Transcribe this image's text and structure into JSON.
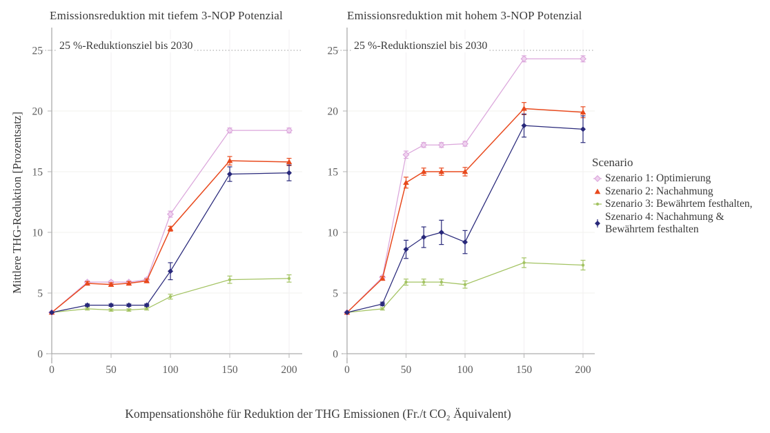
{
  "ylabel": "Mittlere THG-Reduktion [Prozentsatz]",
  "xlabel": "Kompensationshöhe für Reduktion der THG Emissionen (Fr./t CO₂ Äquivalent)",
  "legend": {
    "title": "Scenario",
    "items": [
      {
        "label": "Szenario 1: Optimierung",
        "color": "#DBA6DB",
        "marker": "diamond-open"
      },
      {
        "label": "Szenario 2: Nachahmung",
        "color": "#E8491D",
        "marker": "triangle"
      },
      {
        "label": "Szenario 3: Bewährtem festhalten,",
        "color": "#A3C362",
        "marker": "tick"
      },
      {
        "label": "Szenario 4: Nachahmung & Bewährtem festhalten",
        "color": "#28287A",
        "marker": "diamond"
      }
    ]
  },
  "chart_data": [
    {
      "type": "line",
      "title": "Emissionsreduktion mit tiefem 3-NOP Potenzial",
      "annotation": "25 %-Reduktionsziel bis 2030",
      "target_line": 25,
      "xlabel": "Kompensationshöhe für Reduktion der THG Emissionen (Fr./t CO₂ Äquivalent)",
      "ylabel": "Mittlere THG-Reduktion [Prozentsatz]",
      "x": [
        0,
        30,
        50,
        65,
        80,
        100,
        150,
        200
      ],
      "xticks": [
        0,
        50,
        100,
        150,
        200
      ],
      "yticks": [
        0,
        5,
        10,
        15,
        20,
        25
      ],
      "xlim": [
        0,
        200
      ],
      "ylim": [
        0,
        26.5
      ],
      "grid": true,
      "series": [
        {
          "name": "Szenario 1: Optimierung",
          "color": "#DBA6DB",
          "marker": "diamond-open",
          "values": [
            3.4,
            5.9,
            5.9,
            5.9,
            6.1,
            11.5,
            18.4,
            18.4
          ],
          "errors": [
            0,
            0.1,
            0.1,
            0.1,
            0.15,
            0.25,
            0.2,
            0.2
          ]
        },
        {
          "name": "Szenario 2: Nachahmung",
          "color": "#E8491D",
          "marker": "triangle",
          "values": [
            3.4,
            5.8,
            5.7,
            5.8,
            6.0,
            10.3,
            15.9,
            15.8
          ],
          "errors": [
            0,
            0.15,
            0.15,
            0.15,
            0.15,
            0.2,
            0.35,
            0.3
          ]
        },
        {
          "name": "Szenario 3: Bewährtem festhalten",
          "color": "#A3C362",
          "marker": "tick",
          "values": [
            3.4,
            3.7,
            3.6,
            3.6,
            3.7,
            4.7,
            6.1,
            6.2
          ],
          "errors": [
            0,
            0.1,
            0.1,
            0.1,
            0.1,
            0.2,
            0.3,
            0.3
          ]
        },
        {
          "name": "Szenario 4: Nachahmung & Bewährtem festhalten",
          "color": "#28287A",
          "marker": "diamond",
          "values": [
            3.4,
            4.0,
            4.0,
            4.0,
            4.0,
            6.8,
            14.8,
            14.9
          ],
          "errors": [
            0,
            0.1,
            0.1,
            0.1,
            0.1,
            0.7,
            0.6,
            0.65
          ]
        }
      ]
    },
    {
      "type": "line",
      "title": "Emissionsreduktion mit hohem 3-NOP Potenzial",
      "annotation": "25 %-Reduktionsziel bis 2030",
      "target_line": 25,
      "xlabel": "Kompensationshöhe für Reduktion der THG Emissionen (Fr./t CO₂ Äquivalent)",
      "ylabel": "Mittlere THG-Reduktion [Prozentsatz]",
      "x": [
        0,
        30,
        50,
        65,
        80,
        100,
        150,
        200
      ],
      "xticks": [
        0,
        50,
        100,
        150,
        200
      ],
      "yticks": [
        0,
        5,
        10,
        15,
        20,
        25
      ],
      "xlim": [
        0,
        200
      ],
      "ylim": [
        0,
        26.5
      ],
      "grid": true,
      "series": [
        {
          "name": "Szenario 1: Optimierung",
          "color": "#DBA6DB",
          "marker": "diamond-open",
          "values": [
            3.4,
            6.3,
            16.4,
            17.2,
            17.2,
            17.3,
            24.3,
            24.3
          ],
          "errors": [
            0,
            0.1,
            0.3,
            0.2,
            0.2,
            0.2,
            0.25,
            0.25
          ]
        },
        {
          "name": "Szenario 2: Nachahmung",
          "color": "#E8491D",
          "marker": "triangle",
          "values": [
            3.4,
            6.2,
            14.1,
            15.0,
            15.0,
            15.0,
            20.2,
            19.9
          ],
          "errors": [
            0,
            0.15,
            0.45,
            0.3,
            0.3,
            0.35,
            0.5,
            0.45
          ]
        },
        {
          "name": "Szenario 3: Bewährtem festhalten",
          "color": "#A3C362",
          "marker": "tick",
          "values": [
            3.4,
            3.7,
            5.9,
            5.9,
            5.9,
            5.7,
            7.5,
            7.3
          ],
          "errors": [
            0,
            0.1,
            0.25,
            0.25,
            0.25,
            0.3,
            0.4,
            0.4
          ]
        },
        {
          "name": "Szenario 4: Nachahmung & Bewährtem festhalten",
          "color": "#28287A",
          "marker": "diamond",
          "values": [
            3.4,
            4.1,
            8.6,
            9.6,
            10.0,
            9.2,
            18.8,
            18.5
          ],
          "errors": [
            0,
            0.15,
            0.75,
            0.85,
            1.0,
            0.95,
            0.95,
            1.1
          ]
        }
      ]
    }
  ]
}
